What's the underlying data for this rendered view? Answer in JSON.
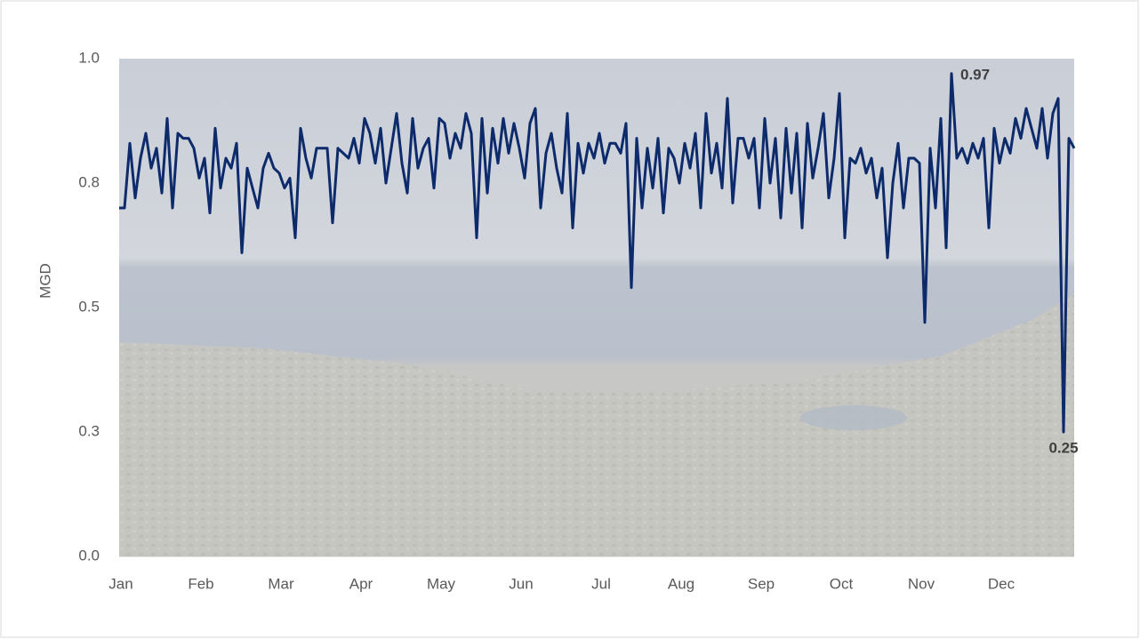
{
  "chart_data": {
    "type": "line",
    "y_label": "MGD",
    "color": "#0d2a6b",
    "ylim": [
      0,
      1
    ],
    "yticks": [
      {
        "value": 0,
        "label": "0.0"
      },
      {
        "value": 0.25,
        "label": "0.3"
      },
      {
        "value": 0.5,
        "label": "0.5"
      },
      {
        "value": 0.75,
        "label": "0.8"
      },
      {
        "value": 1,
        "label": "1.0"
      }
    ],
    "categories": [
      "Jan",
      null,
      null,
      null,
      null,
      null,
      null,
      null,
      null,
      null,
      null,
      null,
      null,
      null,
      null,
      "Feb",
      null,
      null,
      null,
      null,
      null,
      null,
      null,
      null,
      null,
      null,
      null,
      null,
      null,
      null,
      "Mar",
      null,
      null,
      null,
      null,
      null,
      null,
      null,
      null,
      null,
      null,
      null,
      null,
      null,
      null,
      "Apr",
      null,
      null,
      null,
      null,
      null,
      null,
      null,
      null,
      null,
      null,
      null,
      null,
      null,
      null,
      "May",
      null,
      null,
      null,
      null,
      null,
      null,
      null,
      null,
      null,
      null,
      null,
      null,
      null,
      null,
      "Jun",
      null,
      null,
      null,
      null,
      null,
      null,
      null,
      null,
      null,
      null,
      null,
      null,
      null,
      null,
      "Jul",
      null,
      null,
      null,
      null,
      null,
      null,
      null,
      null,
      null,
      null,
      null,
      null,
      null,
      null,
      "Aug",
      null,
      null,
      null,
      null,
      null,
      null,
      null,
      null,
      null,
      null,
      null,
      null,
      null,
      null,
      "Sep",
      null,
      null,
      null,
      null,
      null,
      null,
      null,
      null,
      null,
      null,
      null,
      null,
      null,
      null,
      "Oct",
      null,
      null,
      null,
      null,
      null,
      null,
      null,
      null,
      null,
      null,
      null,
      null,
      null,
      null,
      "Nov",
      null,
      null,
      null,
      null,
      null,
      null,
      null,
      null,
      null,
      null,
      null,
      null,
      null,
      null,
      "Dec",
      null,
      null,
      null,
      null,
      null,
      null,
      null,
      null,
      null,
      null,
      null,
      null,
      null,
      null
    ],
    "values": [
      0.7,
      0.7,
      0.83,
      0.72,
      0.8,
      0.85,
      0.78,
      0.82,
      0.73,
      0.88,
      0.7,
      0.85,
      0.84,
      0.84,
      0.82,
      0.76,
      0.8,
      0.69,
      0.86,
      0.74,
      0.8,
      0.78,
      0.83,
      0.61,
      0.78,
      0.74,
      0.7,
      0.78,
      0.81,
      0.78,
      0.77,
      0.74,
      0.76,
      0.64,
      0.86,
      0.8,
      0.76,
      0.82,
      0.82,
      0.82,
      0.67,
      0.82,
      0.81,
      0.8,
      0.84,
      0.79,
      0.88,
      0.85,
      0.79,
      0.86,
      0.75,
      0.82,
      0.89,
      0.79,
      0.73,
      0.88,
      0.78,
      0.82,
      0.84,
      0.74,
      0.88,
      0.87,
      0.8,
      0.85,
      0.82,
      0.89,
      0.85,
      0.64,
      0.88,
      0.73,
      0.86,
      0.79,
      0.88,
      0.81,
      0.87,
      0.82,
      0.76,
      0.87,
      0.9,
      0.7,
      0.81,
      0.85,
      0.78,
      0.73,
      0.89,
      0.66,
      0.83,
      0.77,
      0.83,
      0.8,
      0.85,
      0.79,
      0.83,
      0.83,
      0.81,
      0.87,
      0.54,
      0.84,
      0.7,
      0.82,
      0.74,
      0.84,
      0.69,
      0.82,
      0.8,
      0.75,
      0.83,
      0.78,
      0.85,
      0.7,
      0.89,
      0.77,
      0.83,
      0.74,
      0.92,
      0.71,
      0.84,
      0.84,
      0.8,
      0.84,
      0.7,
      0.88,
      0.75,
      0.84,
      0.68,
      0.86,
      0.73,
      0.85,
      0.66,
      0.87,
      0.76,
      0.82,
      0.89,
      0.72,
      0.8,
      0.93,
      0.64,
      0.8,
      0.79,
      0.82,
      0.77,
      0.8,
      0.72,
      0.78,
      0.6,
      0.75,
      0.83,
      0.7,
      0.8,
      0.8,
      0.79,
      0.47,
      0.82,
      0.7,
      0.88,
      0.62,
      0.97,
      0.8,
      0.82,
      0.79,
      0.83,
      0.8,
      0.84,
      0.66,
      0.86,
      0.79,
      0.84,
      0.81,
      0.88,
      0.84,
      0.9,
      0.86,
      0.82,
      0.9,
      0.8,
      0.89,
      0.92,
      0.25,
      0.84,
      0.82
    ],
    "value_labels": [
      null,
      null,
      null,
      null,
      null,
      null,
      null,
      null,
      null,
      null,
      null,
      null,
      null,
      null,
      null,
      null,
      null,
      null,
      null,
      null,
      null,
      null,
      null,
      null,
      null,
      null,
      null,
      null,
      null,
      null,
      null,
      null,
      null,
      null,
      null,
      null,
      null,
      null,
      null,
      null,
      null,
      null,
      null,
      null,
      null,
      null,
      null,
      null,
      null,
      null,
      null,
      null,
      null,
      null,
      null,
      null,
      null,
      null,
      null,
      null,
      null,
      null,
      null,
      null,
      null,
      null,
      null,
      null,
      null,
      null,
      null,
      null,
      null,
      null,
      null,
      null,
      null,
      null,
      null,
      null,
      null,
      null,
      null,
      null,
      null,
      null,
      null,
      null,
      null,
      null,
      null,
      null,
      null,
      null,
      null,
      null,
      null,
      null,
      null,
      null,
      null,
      null,
      null,
      null,
      null,
      null,
      null,
      null,
      null,
      null,
      null,
      null,
      null,
      null,
      null,
      null,
      null,
      null,
      null,
      null,
      null,
      null,
      null,
      null,
      null,
      null,
      null,
      null,
      null,
      null,
      null,
      null,
      null,
      null,
      null,
      null,
      null,
      null,
      null,
      null,
      null,
      null,
      null,
      null,
      null,
      null,
      null,
      null,
      null,
      null,
      null,
      null,
      null,
      null,
      null,
      null,
      "0.97",
      null,
      null,
      null,
      null,
      null,
      null,
      null,
      null,
      null,
      null,
      null,
      null,
      null,
      null,
      null,
      null,
      null,
      null,
      null,
      null,
      "0.25",
      null,
      null
    ]
  }
}
